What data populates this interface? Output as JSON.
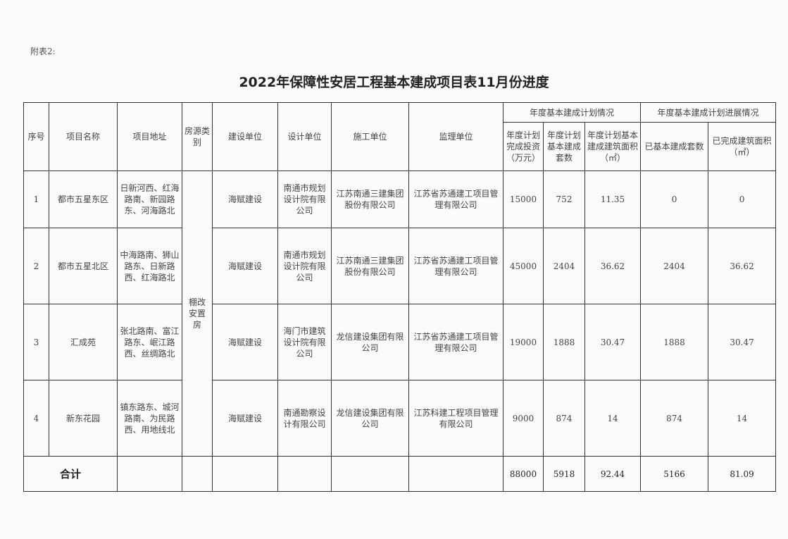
{
  "note": "附表2:",
  "title": "2022年保障性安居工程基本建成项目表11月份进度",
  "headers": {
    "index": "序号",
    "name": "项目名称",
    "address": "项目地址",
    "housing_type": "房源类别",
    "builder": "建设单位",
    "designer": "设计单位",
    "contractor": "施工单位",
    "supervisor": "监理单位",
    "plan_group": "年度基本建成计划情况",
    "progress_group": "年度基本建成计划进展情况",
    "plan_investment": "年度计划完成投资（万元）",
    "plan_units": "年度计划基本建成套数",
    "plan_area": "年度计划基本建成建筑面积（㎡）",
    "done_units": "已基本建成套数",
    "done_area": "已完成建筑面积（㎡）"
  },
  "housing_type": "棚改安置房",
  "rows": [
    {
      "index": "1",
      "name": "都市五星东区",
      "address": "日新河西、红海路南、新园路东、河海路北",
      "builder": "海赋建设",
      "designer": "南通市规划设计院有限公司",
      "contractor": "江苏南通三建集团股份有限公司",
      "supervisor": "江苏省苏通建工项目管理有限公司",
      "plan_investment": "15000",
      "plan_units": "752",
      "plan_area": "11.35",
      "done_units": "0",
      "done_area": "0"
    },
    {
      "index": "2",
      "name": "都市五星北区",
      "address": "中海路南、狮山路东、日新路西、红海路北",
      "builder": "海赋建设",
      "designer": "南通市规划设计院有限公司",
      "contractor": "江苏南通三建集团股份有限公司",
      "supervisor": "江苏省苏通建工项目管理有限公司",
      "plan_investment": "45000",
      "plan_units": "2404",
      "plan_area": "36.62",
      "done_units": "2404",
      "done_area": "36.62"
    },
    {
      "index": "3",
      "name": "汇成苑",
      "address": "张北路南、富江路东、岷江路西、丝绸路北",
      "builder": "海赋建设",
      "designer": "海门市建筑设计院有限公司",
      "contractor": "龙信建设集团有限公司",
      "supervisor": "江苏省苏通建工项目管理有限公司",
      "plan_investment": "19000",
      "plan_units": "1888",
      "plan_area": "30.47",
      "done_units": "1888",
      "done_area": "30.47"
    },
    {
      "index": "4",
      "name": "新东花园",
      "address": "镇东路东、城河路南、为民路西、用地线北",
      "builder": "海赋建设",
      "designer": "南通勘察设计有限公司",
      "contractor": "龙信建设集团有限公司",
      "supervisor": "江苏科建工程项目管理有限公司",
      "plan_investment": "9000",
      "plan_units": "874",
      "plan_area": "14",
      "done_units": "874",
      "done_area": "14"
    }
  ],
  "total": {
    "label": "合计",
    "plan_investment": "88000",
    "plan_units": "5918",
    "plan_area": "92.44",
    "done_units": "5166",
    "done_area": "81.09"
  }
}
